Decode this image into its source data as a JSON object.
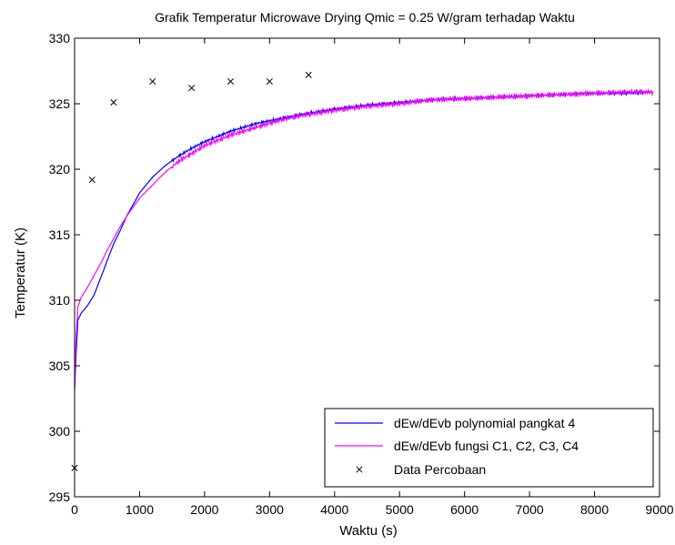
{
  "chart_data": {
    "type": "line",
    "title": "Grafik Temperatur Microwave Drying Qmic = 0.25 W/gram terhadap Waktu",
    "xlabel": "Waktu (s)",
    "ylabel": "Temperatur (K)",
    "xlim": [
      0,
      9000
    ],
    "ylim": [
      295,
      330
    ],
    "xticks": [
      0,
      1000,
      2000,
      3000,
      4000,
      5000,
      6000,
      7000,
      8000,
      9000
    ],
    "yticks": [
      295,
      300,
      305,
      310,
      315,
      320,
      325,
      330
    ],
    "grid": false,
    "legend_position": "bottom-right",
    "series": [
      {
        "name": "dEw/dEvb polynomial pangkat 4",
        "style": "line",
        "color": "#0000ff",
        "x": [
          0,
          20,
          50,
          100,
          200,
          300,
          400,
          500,
          600,
          700,
          800,
          900,
          1000,
          1200,
          1400,
          1600,
          1800,
          2000,
          2200,
          2400,
          2600,
          2800,
          3000,
          3200,
          3500,
          4000,
          4500,
          5000,
          5500,
          6000,
          6500,
          7000,
          7500,
          8000,
          8500,
          8900
        ],
        "y": [
          303.2,
          305.5,
          308.5,
          309.0,
          309.6,
          310.4,
          311.7,
          313.0,
          314.3,
          315.3,
          316.4,
          317.3,
          318.2,
          319.4,
          320.3,
          321.0,
          321.6,
          322.1,
          322.5,
          322.9,
          323.2,
          323.5,
          323.7,
          323.9,
          324.2,
          324.6,
          324.9,
          325.1,
          325.3,
          325.4,
          325.5,
          325.6,
          325.7,
          325.8,
          325.8,
          325.9
        ]
      },
      {
        "name": "dEw/dEvb fungsi C1, C2, C3, C4",
        "style": "line",
        "color": "#ff00ff",
        "x": [
          0,
          20,
          50,
          100,
          200,
          300,
          400,
          500,
          600,
          700,
          800,
          900,
          1000,
          1200,
          1400,
          1600,
          1800,
          2000,
          2200,
          2400,
          2600,
          2800,
          3000,
          3200,
          3500,
          4000,
          4500,
          5000,
          5500,
          6000,
          6500,
          7000,
          7500,
          8000,
          8500,
          8900
        ],
        "y": [
          303.3,
          306.8,
          309.5,
          310.2,
          311.0,
          311.9,
          312.8,
          313.8,
          314.7,
          315.6,
          316.4,
          317.1,
          317.8,
          318.8,
          319.8,
          320.6,
          321.2,
          321.8,
          322.2,
          322.6,
          322.9,
          323.2,
          323.5,
          323.8,
          324.1,
          324.5,
          324.8,
          325.0,
          325.3,
          325.4,
          325.5,
          325.6,
          325.7,
          325.8,
          325.9,
          325.9
        ]
      },
      {
        "name": "Data Percobaan",
        "style": "marker-x",
        "color": "#000000",
        "x": [
          0,
          270,
          600,
          1200,
          1800,
          2400,
          3000,
          3600
        ],
        "y": [
          297.2,
          319.2,
          325.1,
          326.7,
          326.2,
          326.7,
          326.7,
          327.2
        ]
      }
    ]
  }
}
